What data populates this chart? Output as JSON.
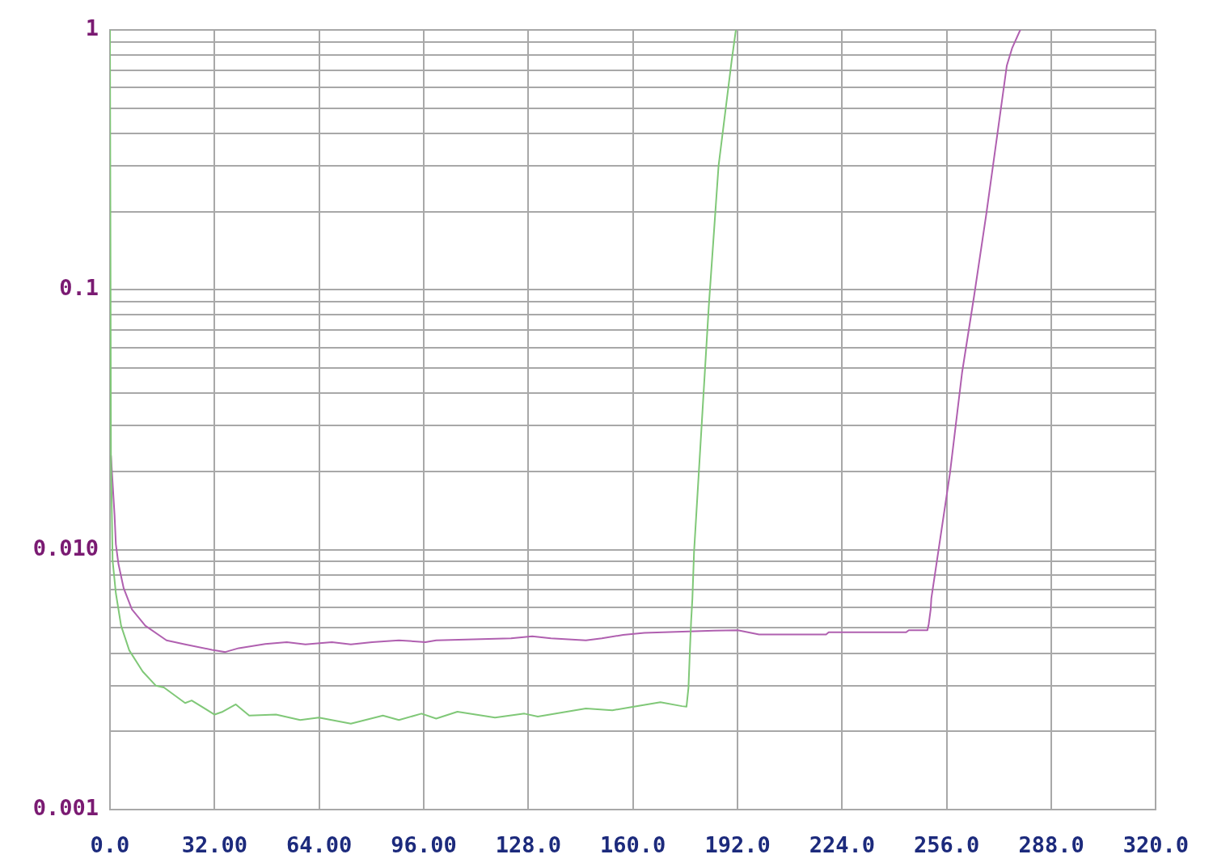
{
  "chart_data": {
    "type": "line",
    "log": "y",
    "grid": true,
    "xlim": [
      0,
      320
    ],
    "ylim": [
      0.001,
      1
    ],
    "xticks": [
      {
        "value": 0,
        "label": "0.0"
      },
      {
        "value": 32,
        "label": "32.00"
      },
      {
        "value": 64,
        "label": "64.00"
      },
      {
        "value": 96,
        "label": "96.00"
      },
      {
        "value": 128,
        "label": "128.0"
      },
      {
        "value": 160,
        "label": "160.0"
      },
      {
        "value": 192,
        "label": "192.0"
      },
      {
        "value": 224,
        "label": "224.0"
      },
      {
        "value": 256,
        "label": "256.0"
      },
      {
        "value": 288,
        "label": "288.0"
      },
      {
        "value": 320,
        "label": "320.0"
      }
    ],
    "yticks": [
      0.001,
      {
        "value": 0.002,
        "label": null
      },
      {
        "value": 0.003,
        "label": null
      },
      {
        "value": 0.004,
        "label": null
      },
      {
        "value": 0.005,
        "label": null
      },
      {
        "value": 0.006,
        "label": null
      },
      {
        "value": 0.007,
        "label": null
      },
      {
        "value": 0.008,
        "label": null
      },
      {
        "value": 0.009,
        "label": null
      },
      {
        "value": 0.01,
        "label": "0.010"
      },
      {
        "value": 0.02,
        "label": null
      },
      {
        "value": 0.03,
        "label": null
      },
      {
        "value": 0.04,
        "label": null
      },
      {
        "value": 0.05,
        "label": null
      },
      {
        "value": 0.06,
        "label": null
      },
      {
        "value": 0.07,
        "label": null
      },
      {
        "value": 0.08,
        "label": null
      },
      {
        "value": 0.09,
        "label": null
      },
      0.1,
      {
        "value": 0.2,
        "label": null
      },
      {
        "value": 0.3,
        "label": null
      },
      {
        "value": 0.4,
        "label": null
      },
      {
        "value": 0.5,
        "label": null
      },
      {
        "value": 0.6,
        "label": null
      },
      {
        "value": 0.7,
        "label": null
      },
      {
        "value": 0.8,
        "label": null
      },
      {
        "value": 0.9,
        "label": null
      },
      1
    ],
    "series": [
      {
        "color": "#80c878",
        "x": [
          0,
          0.3,
          0.8,
          1.8,
          3.4,
          5.9,
          10,
          14,
          16.5,
          23,
          25,
          32,
          34.5,
          38.5,
          42.6,
          50.8,
          58.2,
          63.9,
          73.7,
          83.5,
          88.4,
          95.3,
          99.8,
          106.3,
          117.8,
          126.8,
          130.9,
          145.6,
          153.7,
          160.3,
          168.4,
          175,
          176.4,
          177,
          177.4,
          177.8,
          178.2,
          178.7,
          183.2,
          186.2,
          190.2,
          191.5
        ],
        "values": [
          1,
          0.023,
          0.0091,
          0.0068,
          0.0051,
          0.0041,
          0.0034,
          0.003,
          0.00295,
          0.00257,
          0.00263,
          0.00232,
          0.00238,
          0.00254,
          0.0023,
          0.00232,
          0.00221,
          0.00226,
          0.00214,
          0.0023,
          0.00221,
          0.00234,
          0.00224,
          0.00238,
          0.00226,
          0.00234,
          0.00228,
          0.00245,
          0.00241,
          0.00249,
          0.00259,
          0.0025,
          0.00249,
          0.00295,
          0.004,
          0.0053,
          0.0065,
          0.0098,
          0.086,
          0.3,
          0.76,
          1
        ]
      },
      {
        "color": "#b060b0",
        "x": [
          0.3,
          1.4,
          1.8,
          2.6,
          4.2,
          6.7,
          10.8,
          17.3,
          23,
          31.2,
          35.3,
          39.4,
          47.5,
          54.1,
          59.8,
          67.9,
          73.7,
          80.2,
          88.4,
          96.5,
          99.8,
          122.7,
          129.2,
          134.9,
          145.6,
          150.5,
          157,
          163.5,
          184.8,
          192.1,
          198.6,
          219.1,
          219.9,
          243.6,
          244.4,
          250.1,
          250.5,
          251.1,
          251.3,
          257,
          260.7,
          264.4,
          268.1,
          271.7,
          274.4,
          276,
          278.5
        ],
        "values": [
          0.023,
          0.0136,
          0.0105,
          0.0088,
          0.0071,
          0.0059,
          0.0051,
          0.00448,
          0.00432,
          0.00412,
          0.00404,
          0.00418,
          0.00434,
          0.00441,
          0.00432,
          0.00441,
          0.00432,
          0.00441,
          0.00448,
          0.00441,
          0.00448,
          0.00456,
          0.00464,
          0.00456,
          0.00448,
          0.00456,
          0.0047,
          0.00479,
          0.00488,
          0.0049,
          0.00472,
          0.00472,
          0.00481,
          0.00481,
          0.0049,
          0.0049,
          0.00517,
          0.0059,
          0.0065,
          0.0197,
          0.048,
          0.095,
          0.195,
          0.414,
          0.73,
          0.85,
          1
        ]
      }
    ]
  }
}
